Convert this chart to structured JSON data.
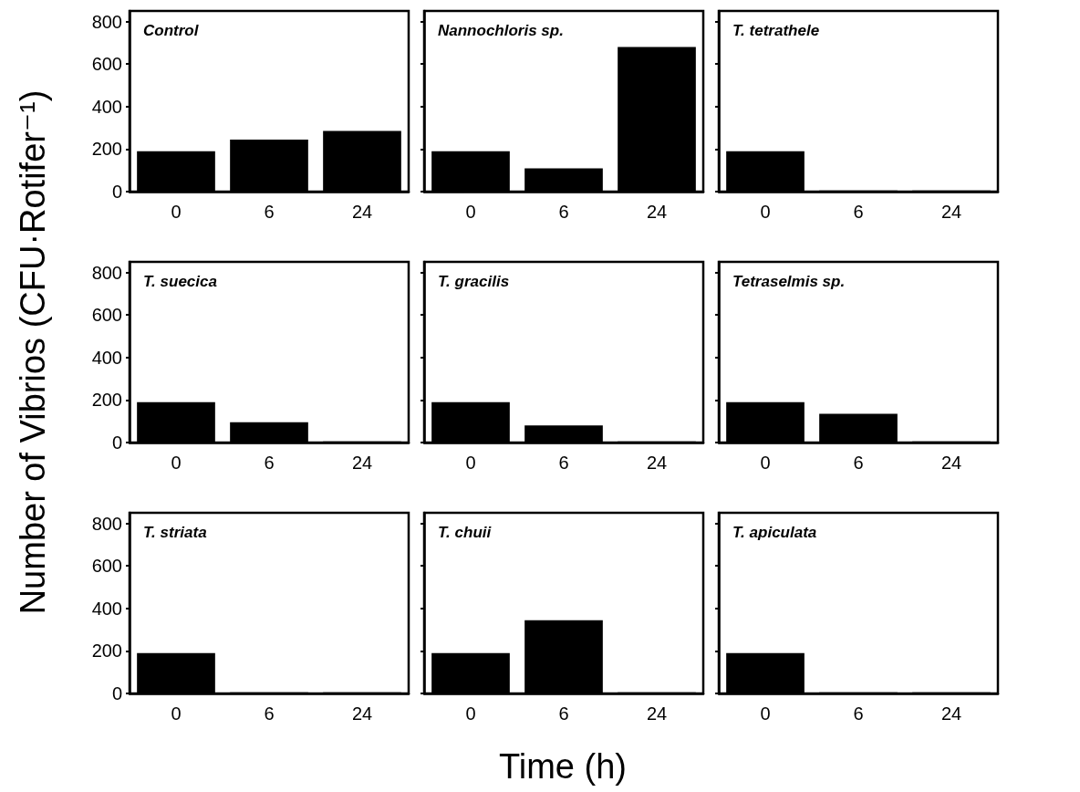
{
  "chart_data": [
    {
      "type": "bar",
      "title": "Control",
      "categories": [
        "0",
        "6",
        "24"
      ],
      "values": [
        190,
        245,
        285
      ],
      "color": "#000000",
      "ylim": [
        0,
        850
      ],
      "yticks": [
        0,
        200,
        400,
        600,
        800
      ],
      "grid": false
    },
    {
      "type": "bar",
      "title": "Nannochloris sp.",
      "categories": [
        "0",
        "6",
        "24"
      ],
      "values": [
        190,
        110,
        680
      ],
      "color": "#000000",
      "ylim": [
        0,
        850
      ],
      "yticks": [
        0,
        200,
        400,
        600,
        800
      ],
      "grid": false,
      "tick_labels": "x"
    },
    {
      "type": "bar",
      "title": "T. tetrathele",
      "categories": [
        "0",
        "6",
        "24"
      ],
      "values": [
        190,
        5,
        5
      ],
      "color": "#000000",
      "ylim": [
        0,
        850
      ],
      "yticks": [
        0,
        200,
        400,
        600,
        800
      ],
      "grid": false,
      "tick_labels": "x"
    },
    {
      "type": "bar",
      "title": "T. suecica",
      "ylabel": "Number of Vibrios (CFU·Rotifer⁻¹)",
      "categories": [
        "0",
        "6",
        "24"
      ],
      "values": [
        190,
        95,
        5
      ],
      "color": "#000000",
      "ylim": [
        0,
        850
      ],
      "yticks": [
        0,
        200,
        400,
        600,
        800
      ],
      "grid": false
    },
    {
      "type": "bar",
      "title": "T. gracilis",
      "categories": [
        "0",
        "6",
        "24"
      ],
      "values": [
        190,
        80,
        5
      ],
      "color": "#000000",
      "ylim": [
        0,
        850
      ],
      "yticks": [
        0,
        200,
        400,
        600,
        800
      ],
      "grid": false,
      "tick_labels": "x"
    },
    {
      "type": "bar",
      "title": "Tetraselmis sp.",
      "categories": [
        "0",
        "6",
        "24"
      ],
      "values": [
        190,
        135,
        5
      ],
      "color": "#000000",
      "ylim": [
        0,
        850
      ],
      "yticks": [
        0,
        200,
        400,
        600,
        800
      ],
      "grid": false,
      "tick_labels": "x"
    },
    {
      "type": "bar",
      "title": "T. striata",
      "categories": [
        "0",
        "6",
        "24"
      ],
      "values": [
        190,
        5,
        5
      ],
      "color": "#000000",
      "ylim": [
        0,
        850
      ],
      "yticks": [
        0,
        200,
        400,
        600,
        800
      ],
      "grid": false
    },
    {
      "type": "bar",
      "title": "T. chuii",
      "xlabel": "Time (h)",
      "categories": [
        "0",
        "6",
        "24"
      ],
      "values": [
        190,
        345,
        5
      ],
      "color": "#000000",
      "ylim": [
        0,
        850
      ],
      "yticks": [
        0,
        200,
        400,
        600,
        800
      ],
      "grid": false,
      "tick_labels": "x"
    },
    {
      "type": "bar",
      "title": "T. apiculata",
      "categories": [
        "0",
        "6",
        "24"
      ],
      "values": [
        190,
        5,
        5
      ],
      "color": "#000000",
      "ylim": [
        0,
        850
      ],
      "yticks": [
        0,
        200,
        400,
        600,
        800
      ],
      "grid": false,
      "tick_labels": "x"
    }
  ]
}
